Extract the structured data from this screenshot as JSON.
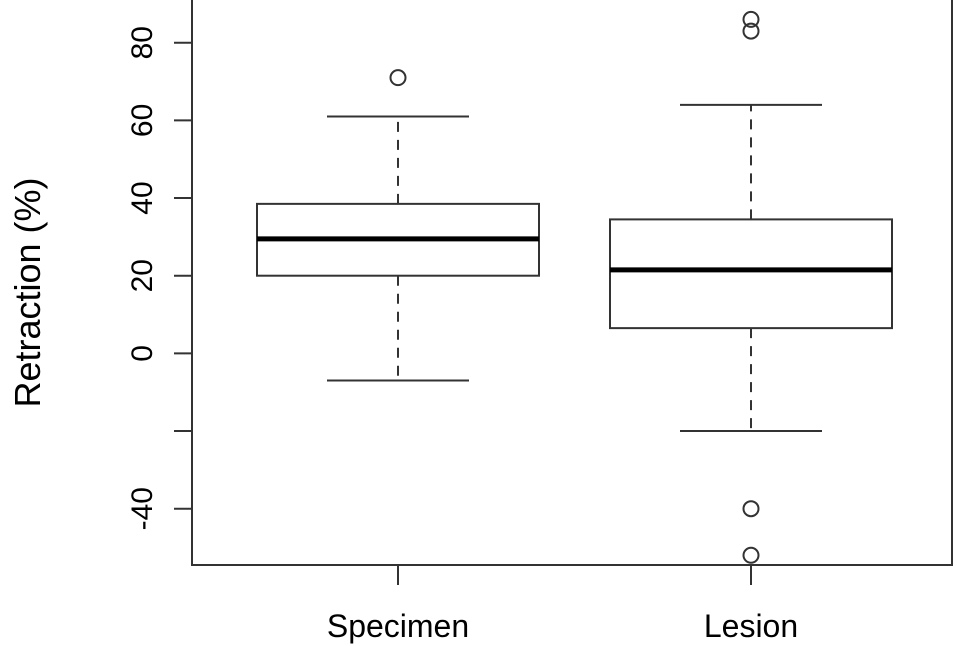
{
  "chart_data": {
    "type": "box",
    "ylabel": "Retraction (%)",
    "xlabel": "",
    "ylim": [
      -54.5,
      91
    ],
    "y_ticks": [
      {
        "value": 80,
        "label": "80"
      },
      {
        "value": 60,
        "label": "60"
      },
      {
        "value": 40,
        "label": "40"
      },
      {
        "value": 20,
        "label": "20"
      },
      {
        "value": 0,
        "label": "0"
      },
      {
        "value": -20,
        "label": ""
      },
      {
        "value": -40,
        "label": "-40"
      }
    ],
    "categories": [
      "Specimen",
      "Lesion"
    ],
    "boxes": [
      {
        "name": "Specimen",
        "whisker_low": -7,
        "q1": 20,
        "median": 29.5,
        "q3": 38.5,
        "whisker_high": 61,
        "outliers": [
          71
        ]
      },
      {
        "name": "Lesion",
        "whisker_low": -20,
        "q1": 6.5,
        "median": 21.5,
        "q3": 34.5,
        "whisker_high": 64,
        "outliers": [
          86,
          83,
          -40,
          -52
        ]
      }
    ],
    "grid": false,
    "colors": {
      "box_fill": "#ffffff",
      "stroke": "#333333",
      "median": "#000000"
    }
  }
}
